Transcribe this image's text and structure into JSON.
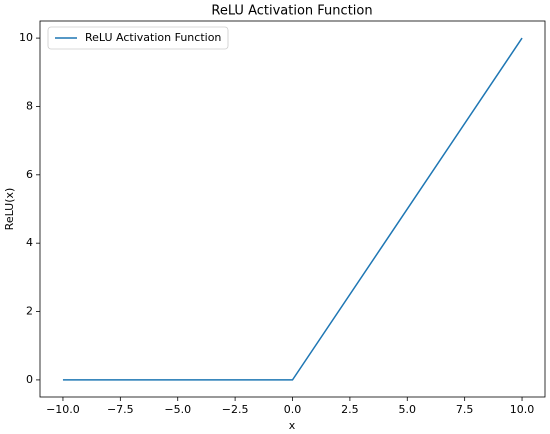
{
  "chart_data": {
    "type": "line",
    "title": "ReLU Activation Function",
    "x_label": "x",
    "y_label": "ReLU(x)",
    "x": [
      -10,
      0,
      10
    ],
    "series": [
      {
        "name": "ReLU Activation Function",
        "color": "#1f77b4",
        "values": [
          0,
          0,
          10
        ]
      }
    ],
    "xlim": [
      -11,
      11
    ],
    "xticks": [
      {
        "value": -10,
        "label": "−10.0"
      },
      {
        "value": -7.5,
        "label": "−7.5"
      },
      {
        "value": -5,
        "label": "−5.0"
      },
      {
        "value": -2.5,
        "label": "−2.5"
      },
      {
        "value": 0,
        "label": "0.0"
      },
      2.5,
      {
        "value": 5,
        "label": "5.0"
      },
      7.5,
      {
        "value": 10,
        "label": "10.0"
      }
    ],
    "ylim": [
      -0.5,
      10.5
    ],
    "yticks": [
      0,
      2,
      4,
      6,
      8,
      10
    ],
    "grid": false,
    "legend": "upper-left"
  }
}
